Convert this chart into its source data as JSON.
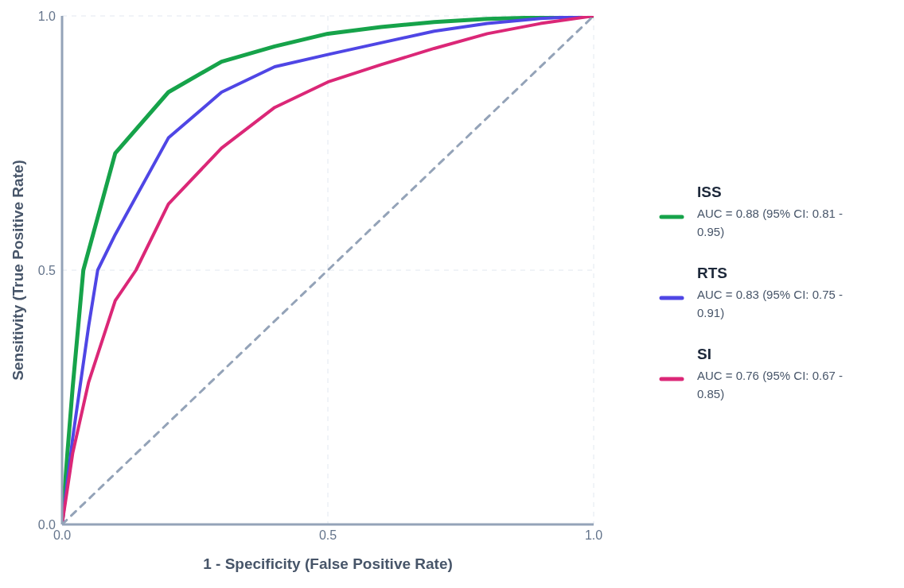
{
  "chart_data": {
    "type": "line",
    "xlabel": "1 - Specificity (False Positive Rate)",
    "ylabel": "Sensitivity (True Positive Rate)",
    "xlim": [
      0,
      1
    ],
    "ylim": [
      0,
      1
    ],
    "xticks": [
      {
        "value": 0,
        "label": "0.0"
      },
      0.5,
      {
        "value": 1,
        "label": "1.0"
      }
    ],
    "yticks": [
      {
        "value": 0,
        "label": "0.0"
      },
      0.5,
      {
        "value": 1,
        "label": "1.0"
      }
    ],
    "grid": true,
    "legend": "right",
    "marker": "none",
    "annotations": [
      "AUC = 0.88 (95% CI: 0.81 - 0.95)",
      "AUC = 0.83 (95% CI: 0.75 - 0.91)",
      "AUC = 0.76 (95% CI: 0.67 - 0.85)"
    ],
    "series": [
      {
        "name": "ISS",
        "color": "#16a34a",
        "x": [
          0,
          0.01,
          0.02,
          0.04,
          0.1,
          0.2,
          0.3,
          0.4,
          0.5,
          0.6,
          0.7,
          0.8,
          0.9,
          1
        ],
        "values": [
          0,
          0.14,
          0.27,
          0.5,
          0.73,
          0.85,
          0.91,
          0.94,
          0.965,
          0.978,
          0.988,
          0.994,
          0.997,
          1
        ]
      },
      {
        "name": "RTS",
        "color": "#4f46e5",
        "x": [
          0,
          0.02,
          0.05,
          0.067,
          0.1,
          0.2,
          0.3,
          0.4,
          0.5,
          0.6,
          0.7,
          0.8,
          0.9,
          1
        ],
        "values": [
          0,
          0.17,
          0.39,
          0.5,
          0.57,
          0.76,
          0.85,
          0.9,
          0.924,
          0.947,
          0.97,
          0.985,
          0.995,
          1
        ]
      },
      {
        "name": "SI",
        "color": "#db2777",
        "x": [
          0,
          0.02,
          0.05,
          0.1,
          0.139,
          0.2,
          0.3,
          0.4,
          0.5,
          0.6,
          0.7,
          0.8,
          0.9,
          1
        ],
        "values": [
          0,
          0.14,
          0.28,
          0.44,
          0.5,
          0.63,
          0.74,
          0.82,
          0.87,
          0.904,
          0.936,
          0.965,
          0.985,
          1
        ]
      },
      {
        "color": "#94a3b8",
        "line_style": "dashed",
        "x": [
          0,
          1
        ],
        "values": [
          0,
          1
        ]
      }
    ]
  }
}
